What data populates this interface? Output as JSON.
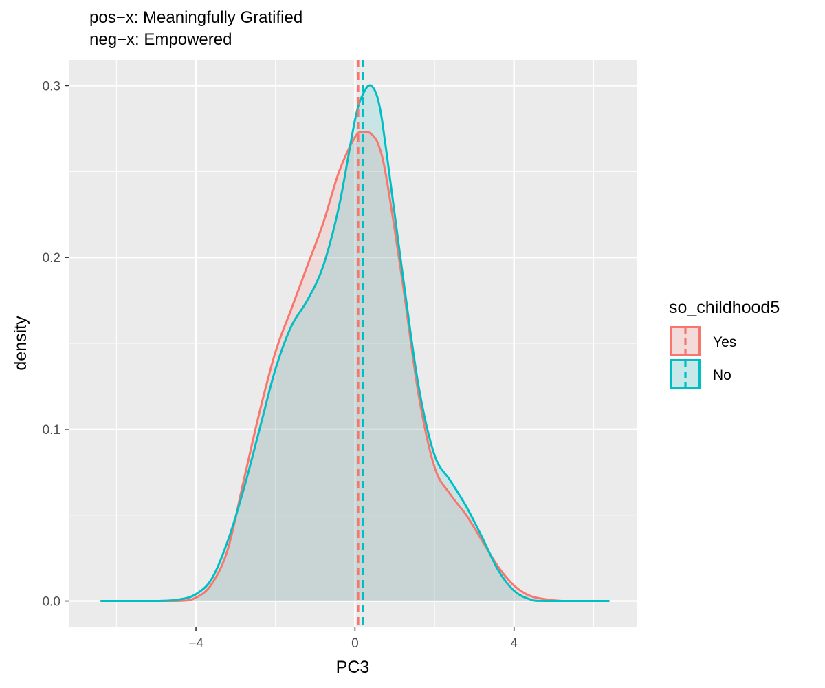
{
  "chart_data": {
    "type": "area",
    "subtitle_lines": [
      "pos−x: Meaningfully Gratified",
      "neg−x: Empowered"
    ],
    "xlabel": "PC3",
    "ylabel": "density",
    "xlim": [
      -7.2,
      7.1
    ],
    "ylim": [
      -0.015,
      0.315
    ],
    "x_ticks": [
      -4,
      0,
      4
    ],
    "x_tick_labels": [
      "−4",
      "0",
      "4"
    ],
    "y_ticks": [
      0.0,
      0.1,
      0.2,
      0.3
    ],
    "y_tick_labels": [
      "0.0",
      "0.1",
      "0.2",
      "0.3"
    ],
    "grid": true,
    "legend": {
      "title": "so_childhood5",
      "position": "right"
    },
    "x_range_drawn": [
      -6.4,
      6.4
    ],
    "series": [
      {
        "name": "Yes",
        "color": "#F8766D",
        "mean_line": 0.08,
        "x": [
          -6.4,
          -4.5,
          -4.0,
          -3.6,
          -3.2,
          -2.8,
          -2.4,
          -2.0,
          -1.6,
          -1.2,
          -0.8,
          -0.4,
          0.0,
          0.2,
          0.4,
          0.6,
          0.8,
          1.2,
          1.6,
          2.0,
          2.4,
          2.8,
          3.2,
          3.6,
          4.0,
          4.4,
          4.8,
          5.2,
          5.6,
          6.4
        ],
        "y": [
          0.0,
          0.0,
          0.002,
          0.01,
          0.03,
          0.07,
          0.11,
          0.145,
          0.17,
          0.195,
          0.22,
          0.25,
          0.27,
          0.273,
          0.272,
          0.265,
          0.245,
          0.185,
          0.12,
          0.078,
          0.062,
          0.05,
          0.035,
          0.02,
          0.009,
          0.003,
          0.001,
          0.0,
          0.0,
          0.0
        ]
      },
      {
        "name": "No",
        "color": "#00BFC4",
        "mean_line": 0.2,
        "x": [
          -6.4,
          -5.0,
          -4.4,
          -4.0,
          -3.6,
          -3.2,
          -2.8,
          -2.4,
          -2.0,
          -1.6,
          -1.2,
          -0.8,
          -0.4,
          0.0,
          0.2,
          0.4,
          0.6,
          0.8,
          1.2,
          1.6,
          2.0,
          2.4,
          2.8,
          3.2,
          3.6,
          4.0,
          4.4,
          4.8,
          6.4
        ],
        "y": [
          0.0,
          0.0,
          0.001,
          0.004,
          0.013,
          0.035,
          0.065,
          0.1,
          0.135,
          0.16,
          0.175,
          0.195,
          0.23,
          0.28,
          0.295,
          0.3,
          0.29,
          0.26,
          0.19,
          0.125,
          0.085,
          0.07,
          0.055,
          0.037,
          0.018,
          0.006,
          0.001,
          0.0,
          0.0
        ]
      }
    ]
  }
}
